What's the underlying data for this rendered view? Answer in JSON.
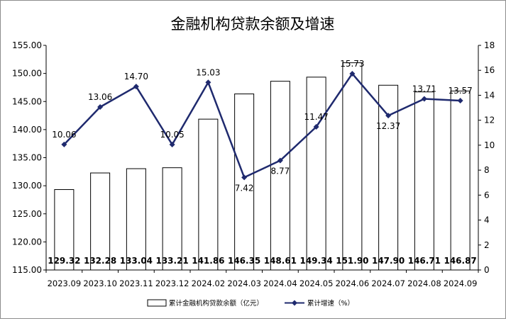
{
  "chart_data": {
    "type": "bar+line",
    "title": "金融机构贷款余额及增速",
    "categories": [
      "2023.09",
      "2023.10",
      "2023.11",
      "2023.12",
      "2024.02",
      "2024.03",
      "2024.04",
      "2024.05",
      "2024.06",
      "2024.07",
      "2024.08",
      "2024.09"
    ],
    "series": [
      {
        "name": "累计金融机构贷款余额（亿元）",
        "type": "bar",
        "axis": "left",
        "values": [
          129.32,
          132.28,
          133.04,
          133.21,
          141.86,
          146.35,
          148.61,
          149.34,
          151.9,
          147.9,
          146.71,
          146.87
        ],
        "labels": [
          "129.32",
          "132.28",
          "133.04",
          "133.21",
          "141.86",
          "146.35",
          "148.61",
          "149.34",
          "151.90",
          "147.90",
          "146.71",
          "146.87"
        ]
      },
      {
        "name": "累计增速（%）",
        "type": "line",
        "axis": "right",
        "color": "#1f2a6e",
        "values": [
          10.06,
          13.06,
          14.7,
          10.05,
          15.03,
          7.42,
          8.77,
          11.47,
          15.73,
          12.37,
          13.71,
          13.57
        ],
        "labels": [
          "10.06",
          "13.06",
          "14.70",
          "10.05",
          "15.03",
          "7.42",
          "8.77",
          "11.47",
          "15.73",
          "12.37",
          "13.71",
          "13.57"
        ]
      }
    ],
    "y_left": {
      "min": 115,
      "max": 155,
      "ticks": [
        "115.00",
        "120.00",
        "125.00",
        "130.00",
        "135.00",
        "140.00",
        "145.00",
        "150.00",
        "155.00"
      ]
    },
    "y_right": {
      "min": 0,
      "max": 18,
      "ticks": [
        "0",
        "2",
        "4",
        "6",
        "8",
        "10",
        "12",
        "14",
        "16",
        "18"
      ]
    },
    "legend": {
      "position": "bottom",
      "bar_label": "累计金融机构贷款余额（亿元）",
      "line_label": "累计增速（%）"
    },
    "grid": false
  }
}
